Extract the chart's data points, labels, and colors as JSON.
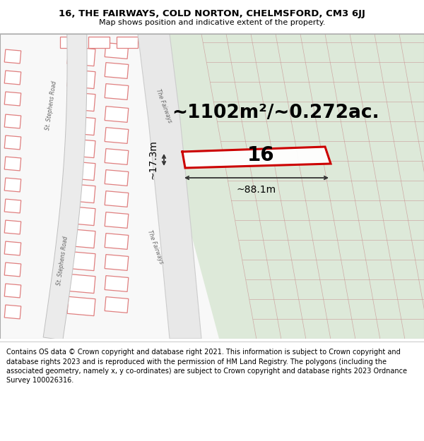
{
  "title": "16, THE FAIRWAYS, COLD NORTON, CHELMSFORD, CM3 6JJ",
  "subtitle": "Map shows position and indicative extent of the property.",
  "footer": "Contains OS data © Crown copyright and database right 2021. This information is subject to Crown copyright and database rights 2023 and is reproduced with the permission of HM Land Registry. The polygons (including the associated geometry, namely x, y co-ordinates) are subject to Crown copyright and database rights 2023 Ordnance Survey 100026316.",
  "area_label": "~1102m²/~0.272ac.",
  "width_label": "~88.1m",
  "height_label": "~17.3m",
  "number_label": "16",
  "bg_color": "#ffffff",
  "building_fill": "#ffffff",
  "building_edge": "#e08080",
  "road_fill": "#ffffff",
  "road_edge": "#bbbbbb",
  "green_fill": "#c8ddc0",
  "green_alpha": 0.55,
  "property_edge": "#cc0000",
  "property_fill": "#ffffff",
  "dim_color": "#333333",
  "text_color": "#000000",
  "road_label_color": "#777777",
  "title_fontsize": 9.5,
  "subtitle_fontsize": 8.0,
  "footer_fontsize": 7.0,
  "area_fontsize": 19,
  "number_fontsize": 20,
  "dim_fontsize": 10
}
